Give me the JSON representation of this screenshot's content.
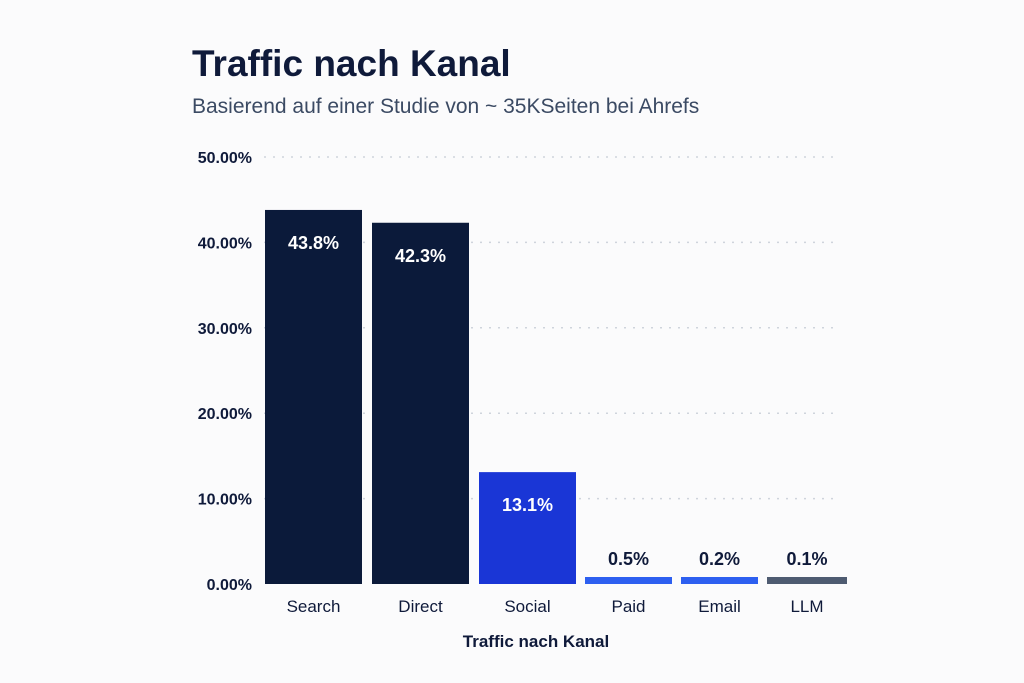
{
  "chart_data": {
    "type": "bar",
    "title": "Traffic nach Kanal",
    "subtitle": "Basierend auf einer Studie von ~ 35KSeiten bei Ahrefs",
    "xlabel": "Traffic nach Kanal",
    "ylabel": "",
    "categories": [
      "Search",
      "Direct",
      "Social",
      "Paid",
      "Email",
      "LLM"
    ],
    "values": [
      43.8,
      42.3,
      13.1,
      0.5,
      0.2,
      0.1
    ],
    "data_labels": [
      "43.8%",
      "42.3%",
      "13.1%",
      "0.5%",
      "0.2%",
      "0.1%"
    ],
    "bar_colors": [
      "#0b1a3a",
      "#0b1a3a",
      "#1a36d6",
      "#2d5ff0",
      "#2d5ff0",
      "#4e5b71"
    ],
    "ylim": [
      0,
      50
    ],
    "yticks": [
      0,
      10,
      20,
      30,
      40,
      50
    ],
    "ytick_labels": [
      "0.00%",
      "10.00%",
      "20.00%",
      "30.00%",
      "40.00%",
      "50.00%"
    ],
    "grid": true,
    "legend": "none"
  }
}
